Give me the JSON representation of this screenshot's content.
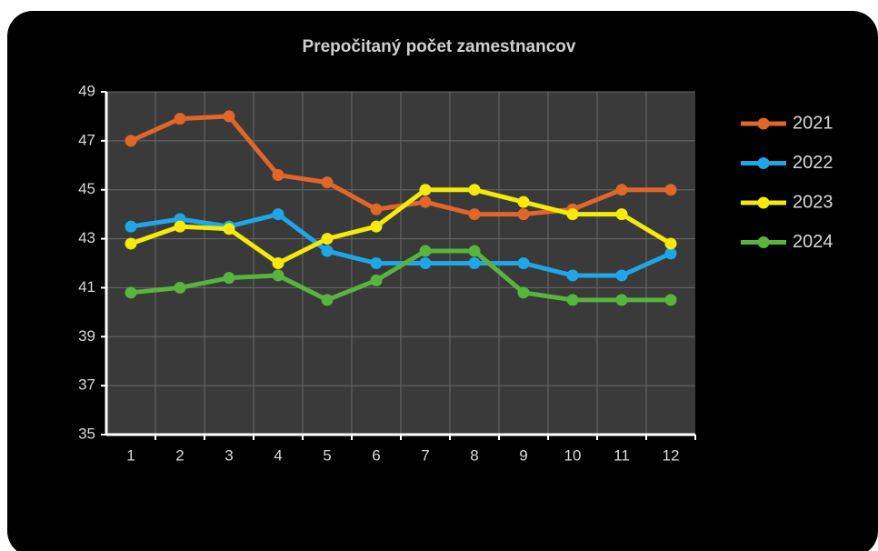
{
  "chart_data": {
    "type": "line",
    "title": "Prepočitaný počet zamestnancov",
    "categories": [
      "1",
      "2",
      "3",
      "4",
      "5",
      "6",
      "7",
      "8",
      "9",
      "10",
      "11",
      "12"
    ],
    "series": [
      {
        "name": "2021",
        "color": "#e0662a",
        "values": [
          47.0,
          47.9,
          48.0,
          45.6,
          45.3,
          44.2,
          44.5,
          44.0,
          44.0,
          44.2,
          45.0,
          45.0
        ]
      },
      {
        "name": "2022",
        "color": "#1ea6e6",
        "values": [
          43.5,
          43.8,
          43.5,
          44.0,
          42.5,
          42.0,
          42.0,
          42.0,
          42.0,
          41.5,
          41.5,
          42.4
        ]
      },
      {
        "name": "2023",
        "color": "#f5ea0c",
        "values": [
          42.8,
          43.5,
          43.4,
          42.0,
          43.0,
          43.5,
          45.0,
          45.0,
          44.5,
          44.0,
          44.0,
          42.8
        ]
      },
      {
        "name": "2024",
        "color": "#58b43c",
        "values": [
          40.8,
          41.0,
          41.4,
          41.5,
          40.5,
          41.3,
          42.5,
          42.5,
          40.8,
          40.5,
          40.5,
          40.5
        ]
      }
    ],
    "ylim": [
      35,
      49
    ],
    "yticks": [
      35,
      37,
      39,
      41,
      43,
      45,
      47,
      49
    ],
    "grid": true,
    "legend": "right"
  }
}
